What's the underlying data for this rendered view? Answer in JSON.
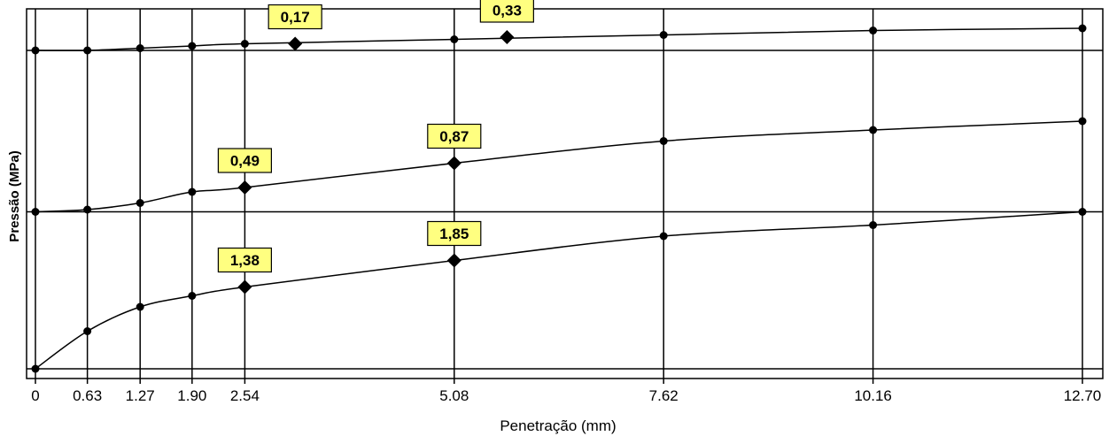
{
  "chart_data": {
    "type": "line",
    "title": "",
    "xlabel": "Penetração  (mm)",
    "ylabel": "Pressão (MPa)",
    "xlim": [
      0,
      12.7
    ],
    "x_ticks": [
      "0",
      "0.63",
      "1.27",
      "1.90",
      "2.54",
      "5.08",
      "7.62",
      "10.16",
      "12.70"
    ],
    "grid": true,
    "colors": {
      "line": "#000000",
      "label_fill": "#ffff80",
      "label_border": "#000000"
    },
    "series": [
      {
        "x": [
          0,
          0.63,
          1.27,
          1.9,
          2.54,
          5.08,
          7.62,
          10.16,
          12.7
        ],
        "y": [
          0.0,
          0.17,
          0.28,
          0.33,
          0.37,
          0.49,
          0.6,
          0.65,
          0.71
        ],
        "baseline": 0.0,
        "labels": [
          {
            "x": 2.54,
            "y": 0.37,
            "text": "1,38"
          },
          {
            "x": 5.08,
            "y": 0.49,
            "text": "1,85"
          }
        ]
      },
      {
        "x": [
          0,
          0.63,
          1.27,
          1.9,
          2.54,
          5.08,
          7.62,
          10.16,
          12.7
        ],
        "y": [
          0.71,
          0.72,
          0.75,
          0.8,
          0.82,
          0.93,
          1.03,
          1.08,
          1.12
        ],
        "baseline": 0.71,
        "labels": [
          {
            "x": 2.54,
            "y": 0.82,
            "text": "0,49"
          },
          {
            "x": 5.08,
            "y": 0.93,
            "text": "0,87"
          }
        ]
      },
      {
        "x": [
          0,
          0.63,
          1.27,
          1.9,
          2.54,
          5.08,
          7.62,
          10.16,
          12.7
        ],
        "y": [
          1.44,
          1.44,
          1.45,
          1.46,
          1.47,
          1.49,
          1.51,
          1.53,
          1.54
        ],
        "baseline": 1.44,
        "labels": [
          {
            "x": 3.15,
            "y": 1.47,
            "text": "0,17"
          },
          {
            "x": 5.72,
            "y": 1.5,
            "text": "0,33"
          }
        ]
      }
    ]
  }
}
